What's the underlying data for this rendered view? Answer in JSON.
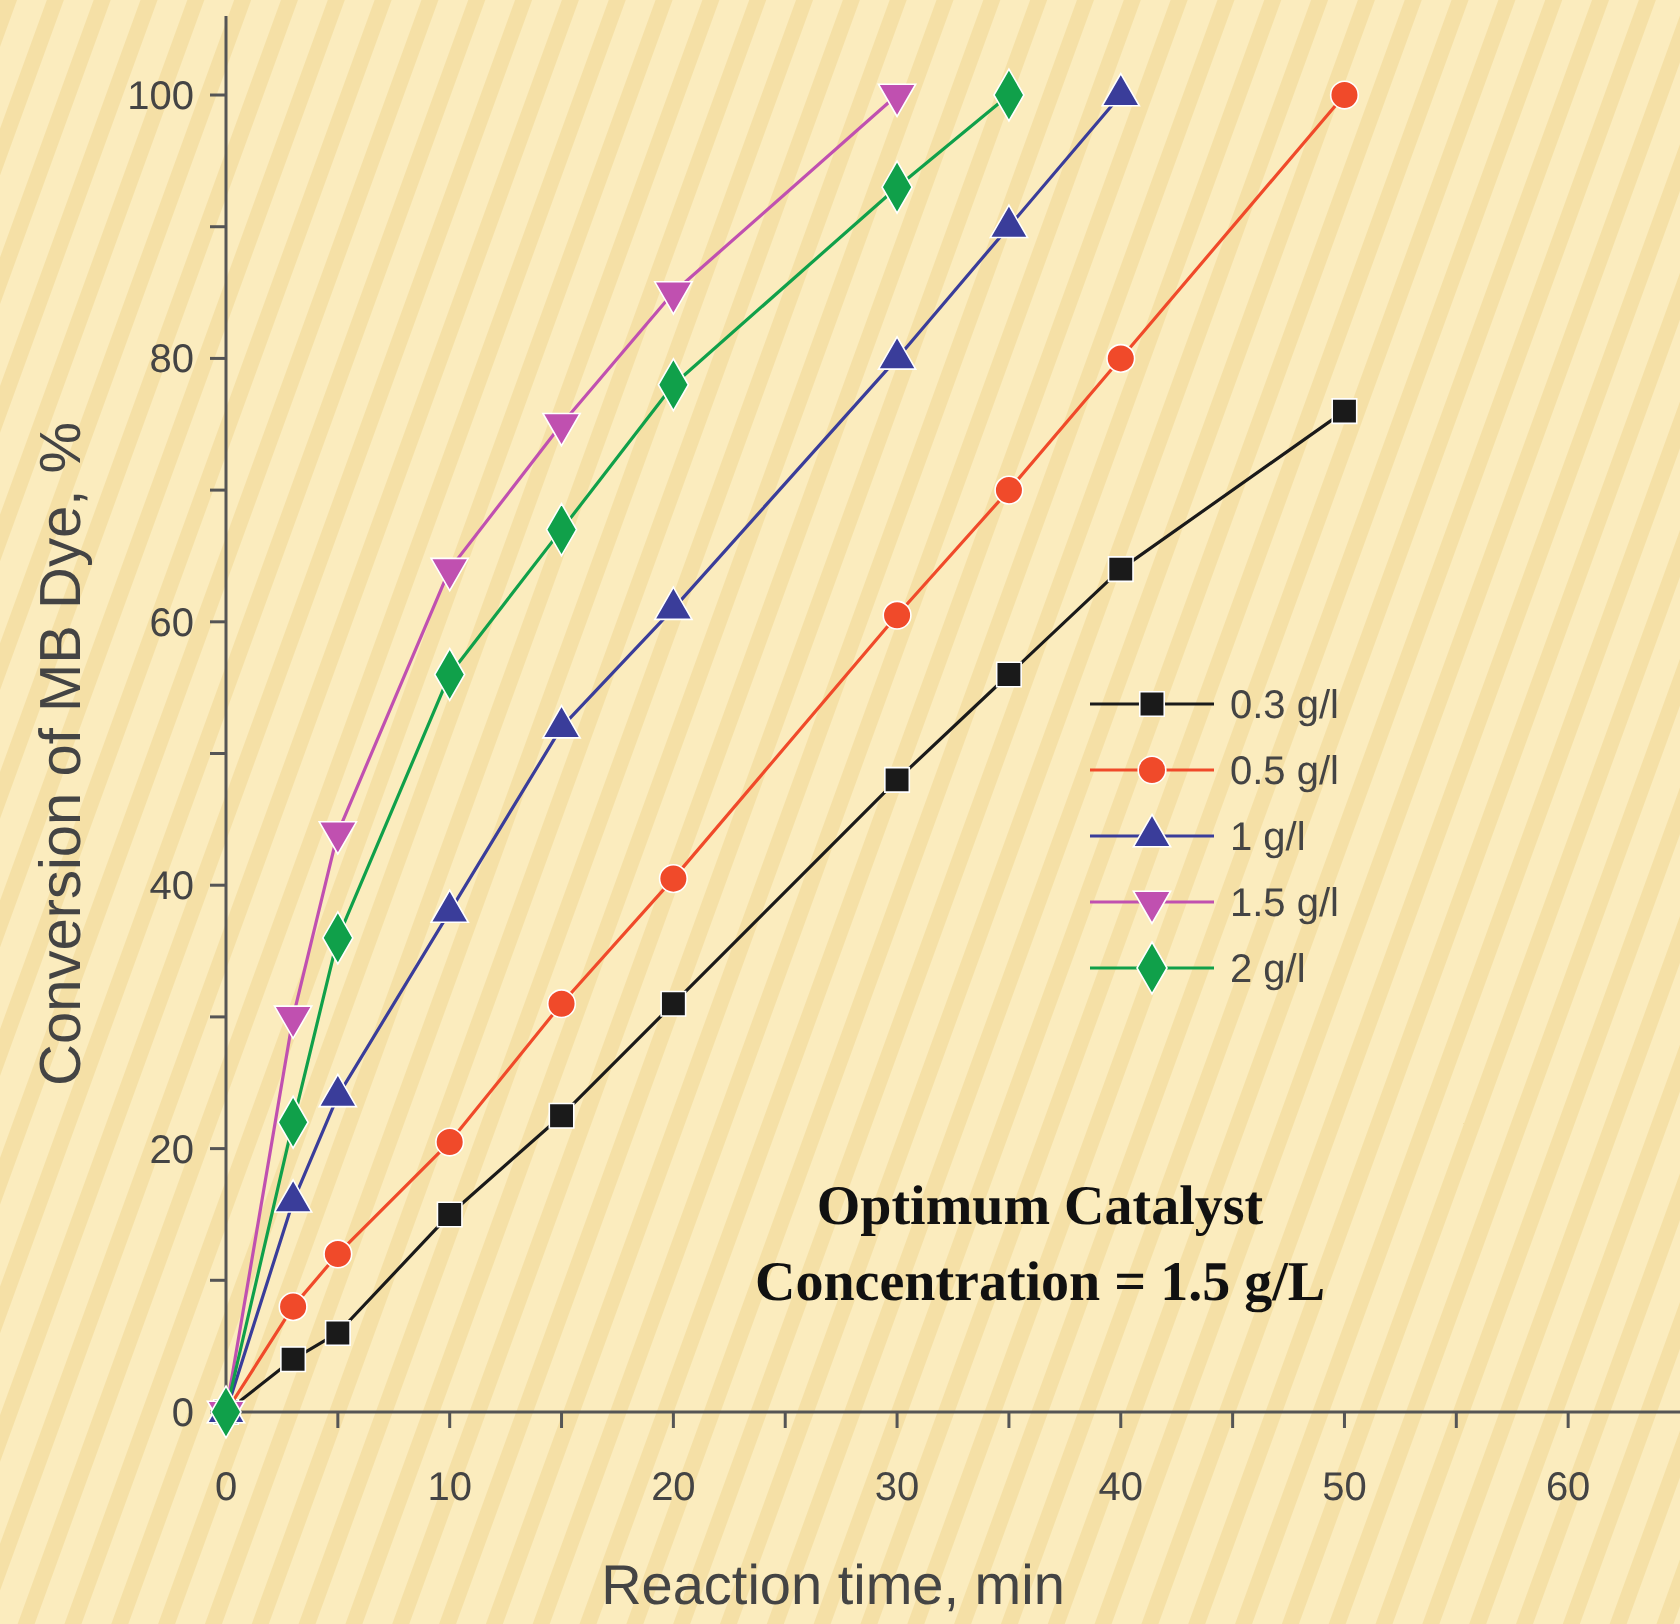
{
  "chart_data": {
    "type": "line",
    "xlabel": "Reaction time, min",
    "ylabel": "Conversion of MB Dye, %",
    "xlim": [
      0,
      65
    ],
    "ylim": [
      0,
      106
    ],
    "xticks": [
      0,
      {
        "value": 5,
        "label": null
      },
      10,
      {
        "value": 15,
        "label": null
      },
      20,
      {
        "value": 25,
        "label": null
      },
      30,
      {
        "value": 35,
        "label": null
      },
      40,
      {
        "value": 45,
        "label": null
      },
      50,
      {
        "value": 55,
        "label": null
      },
      60
    ],
    "yticks": [
      0,
      {
        "value": 10,
        "label": null
      },
      20,
      {
        "value": 30,
        "label": null
      },
      40,
      {
        "value": 50,
        "label": null
      },
      60,
      {
        "value": 70,
        "label": null
      },
      80,
      {
        "value": 90,
        "label": null
      },
      100
    ],
    "grid": false,
    "legend": "right",
    "line_style": "solid",
    "annotations": [
      "Optimum Catalyst\nConcentration = 1.5 g/L"
    ],
    "series": [
      {
        "name": "0.3 g/l",
        "color": "#1a1a1a",
        "marker": "square",
        "x": [
          0,
          3,
          5,
          10,
          15,
          20,
          30,
          35,
          40,
          50
        ],
        "values": [
          0,
          4,
          6,
          15,
          22.5,
          31,
          48,
          56,
          64,
          76
        ]
      },
      {
        "name": "0.5 g/l",
        "color": "#f04a2a",
        "marker": "circle",
        "x": [
          0,
          3,
          5,
          10,
          15,
          20,
          30,
          35,
          40,
          50
        ],
        "values": [
          0,
          8,
          12,
          20.5,
          31,
          40.5,
          60.5,
          70,
          80,
          100
        ]
      },
      {
        "name": "1 g/l",
        "color": "#3a3d9a",
        "marker": "triangle",
        "x": [
          0,
          3,
          5,
          10,
          15,
          20,
          30,
          35,
          40
        ],
        "values": [
          0,
          16,
          24,
          38,
          52,
          61,
          80,
          90,
          100
        ]
      },
      {
        "name": "1.5 g/l",
        "color": "#c050b0",
        "marker": "triangle-down",
        "x": [
          0,
          3,
          5,
          10,
          15,
          20,
          30
        ],
        "values": [
          0,
          30,
          44,
          64,
          75,
          85,
          100
        ]
      },
      {
        "name": "2 g/l",
        "color": "#10a04a",
        "marker": "diamond",
        "x": [
          0,
          3,
          5,
          10,
          15,
          20,
          30,
          35
        ],
        "values": [
          0,
          22,
          36,
          56,
          67,
          78,
          93,
          100
        ]
      }
    ]
  }
}
